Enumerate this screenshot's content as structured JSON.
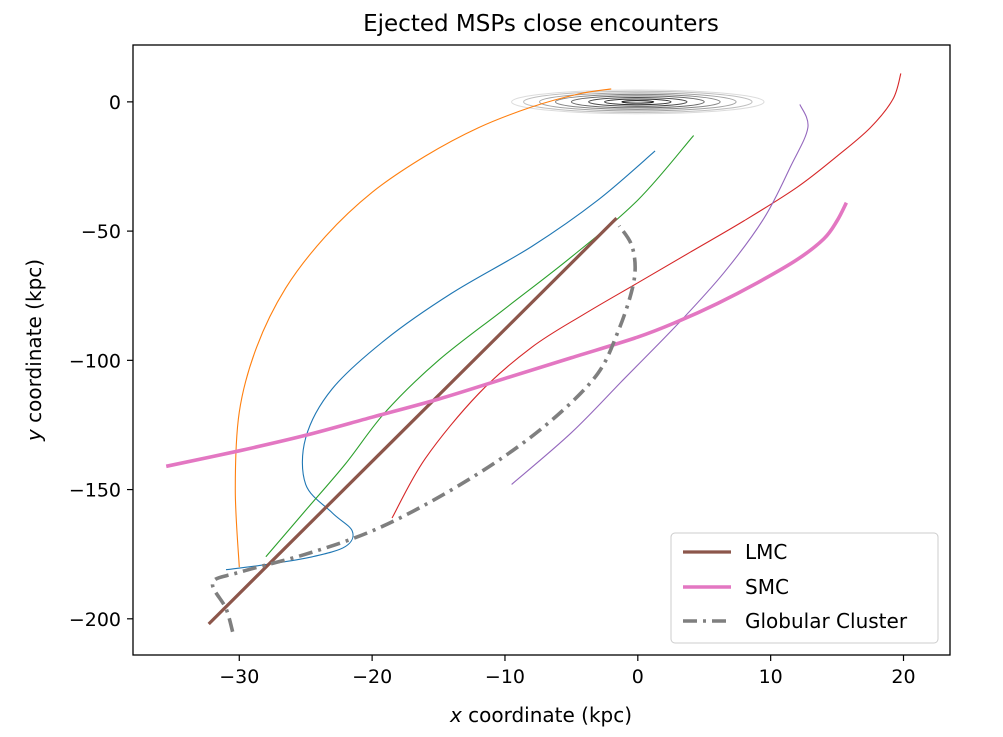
{
  "chart_data": {
    "type": "line",
    "title": "Ejected MSPs close encounters",
    "xlabel": "x coordinate (kpc)",
    "xlabel_var": "x",
    "xlabel_rest": " coordinate (kpc)",
    "ylabel": "y coordinate (kpc)",
    "ylabel_var": "y",
    "ylabel_rest": " coordinate (kpc)",
    "xlim": [
      -38,
      23.5
    ],
    "ylim": [
      -214,
      22
    ],
    "xticks": [
      -30,
      -20,
      -10,
      0,
      10,
      20
    ],
    "xtick_labels": [
      "−30",
      "−20",
      "−10",
      "0",
      "10",
      "20"
    ],
    "yticks": [
      0,
      -50,
      -100,
      -150,
      -200
    ],
    "ytick_labels": [
      "0",
      "−50",
      "−100",
      "−150",
      "−200"
    ],
    "grid": false,
    "legend_location": "lower-right",
    "galaxy_contours": {
      "center": [
        0,
        0
      ],
      "semi_axes": [
        [
          1.2,
          0.5
        ],
        [
          2.5,
          1.1
        ],
        [
          3.7,
          1.7
        ],
        [
          5.0,
          2.3
        ],
        [
          6.2,
          2.9
        ],
        [
          7.4,
          3.5
        ],
        [
          8.6,
          4.1
        ],
        [
          9.5,
          4.6
        ]
      ]
    },
    "series": [
      {
        "name": "LMC",
        "in_legend": true,
        "color": "#8c564b",
        "width": 3.2,
        "dash": "",
        "x": [
          -32.3,
          -1.6
        ],
        "y": [
          -202,
          -45
        ]
      },
      {
        "name": "SMC",
        "in_legend": true,
        "color": "#e377c2",
        "width": 3.6,
        "dash": "",
        "x": [
          -35.5,
          -30,
          -25,
          -20,
          -15,
          -10,
          -5,
          0,
          3,
          6,
          9,
          12,
          14,
          15,
          15.7
        ],
        "y": [
          -141,
          -135,
          -129,
          -122,
          -115,
          -107,
          -99,
          -91,
          -85,
          -78,
          -70,
          -61,
          -53,
          -46,
          -39
        ]
      },
      {
        "name": "Globular Cluster",
        "in_legend": true,
        "color": "#7f7f7f",
        "width": 3.6,
        "dash": "14 6 3 6",
        "x": [
          -30.5,
          -31,
          -32,
          -30,
          -25,
          -20,
          -15,
          -10,
          -6,
          -3,
          -1.5,
          -0.5,
          -0.2,
          -0.5,
          -1.4
        ],
        "y": [
          -205,
          -196,
          -186,
          -182,
          -175,
          -166,
          -153,
          -137,
          -121,
          -105,
          -89,
          -74,
          -64,
          -55,
          -48
        ]
      },
      {
        "name": "",
        "in_legend": false,
        "color": "#1f77b4",
        "width": 1.1,
        "dash": "",
        "x": [
          -31,
          -28,
          -24.5,
          -22,
          -21.5,
          -23,
          -25,
          -25,
          -23,
          -19,
          -14,
          -8,
          -3,
          1.3
        ],
        "y": [
          -181,
          -179,
          -176,
          -172,
          -166,
          -159,
          -148,
          -130,
          -111,
          -92,
          -74,
          -56,
          -38,
          -19
        ]
      },
      {
        "name": "",
        "in_legend": false,
        "color": "#ff7f0e",
        "width": 1.1,
        "dash": "",
        "x": [
          -30,
          -30.3,
          -30,
          -28.7,
          -26.5,
          -23.5,
          -20,
          -16,
          -12,
          -8,
          -4.5,
          -2
        ],
        "y": [
          -180,
          -150,
          -120,
          -95,
          -72,
          -52,
          -35,
          -21,
          -10,
          -2,
          3,
          5
        ]
      },
      {
        "name": "",
        "in_legend": false,
        "color": "#2ca02c",
        "width": 1.1,
        "dash": "",
        "x": [
          -28,
          -25,
          -22,
          -19,
          -15,
          -10,
          -5,
          0,
          4.2
        ],
        "y": [
          -176,
          -158,
          -140,
          -120,
          -100,
          -80,
          -60,
          -38,
          -13
        ]
      },
      {
        "name": "",
        "in_legend": false,
        "color": "#d62728",
        "width": 1.1,
        "dash": "",
        "x": [
          -18.5,
          -16,
          -12,
          -8,
          -4,
          0,
          4,
          8,
          12,
          15,
          17.5,
          19.2,
          19.8
        ],
        "y": [
          -161,
          -138,
          -113,
          -95,
          -82,
          -70,
          -58,
          -46,
          -33,
          -21,
          -10,
          1,
          11
        ]
      },
      {
        "name": "",
        "in_legend": false,
        "color": "#9467bd",
        "width": 1.1,
        "dash": "",
        "x": [
          -9.5,
          -5,
          -1,
          3,
          6.5,
          9.5,
          11.5,
          12.8,
          12.2
        ],
        "y": [
          -148,
          -128,
          -107,
          -86,
          -66,
          -45,
          -25,
          -10,
          -1
        ]
      }
    ],
    "legend": [
      {
        "label": "LMC"
      },
      {
        "label": "SMC"
      },
      {
        "label": "Globular Cluster"
      }
    ]
  }
}
